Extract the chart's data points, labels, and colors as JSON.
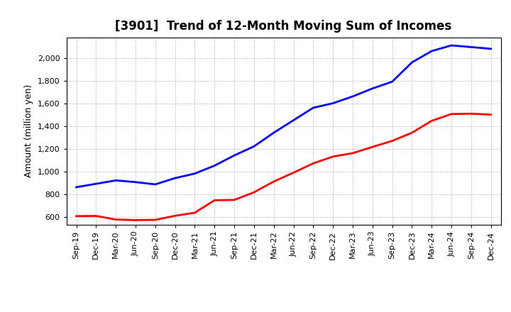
{
  "title": "[3901]  Trend of 12-Month Moving Sum of Incomes",
  "ylabel": "Amount (million yen)",
  "background_color": "#ffffff",
  "plot_background_color": "#ffffff",
  "grid_color": "#999999",
  "x_labels": [
    "Sep-19",
    "Dec-19",
    "Mar-20",
    "Jun-20",
    "Sep-20",
    "Dec-20",
    "Mar-21",
    "Jun-21",
    "Sep-21",
    "Dec-21",
    "Mar-22",
    "Jun-22",
    "Sep-22",
    "Dec-22",
    "Mar-23",
    "Jun-23",
    "Sep-23",
    "Dec-23",
    "Mar-24",
    "Jun-24",
    "Sep-24",
    "Dec-24"
  ],
  "ordinary_income": [
    860,
    890,
    920,
    905,
    885,
    940,
    980,
    1050,
    1140,
    1220,
    1340,
    1450,
    1560,
    1600,
    1660,
    1730,
    1790,
    1960,
    2060,
    2110,
    2095,
    2080
  ],
  "net_income": [
    605,
    607,
    575,
    570,
    572,
    608,
    635,
    745,
    748,
    815,
    910,
    988,
    1070,
    1130,
    1160,
    1215,
    1268,
    1340,
    1445,
    1505,
    1508,
    1500
  ],
  "ordinary_color": "#0000ff",
  "net_color": "#ff0000",
  "ylim_min": 530,
  "ylim_max": 2180,
  "yticks": [
    600,
    800,
    1000,
    1200,
    1400,
    1600,
    1800,
    2000
  ],
  "title_fontsize": 12,
  "tick_fontsize": 8,
  "ylabel_fontsize": 9,
  "line_width": 2.0,
  "legend_fontsize": 10
}
